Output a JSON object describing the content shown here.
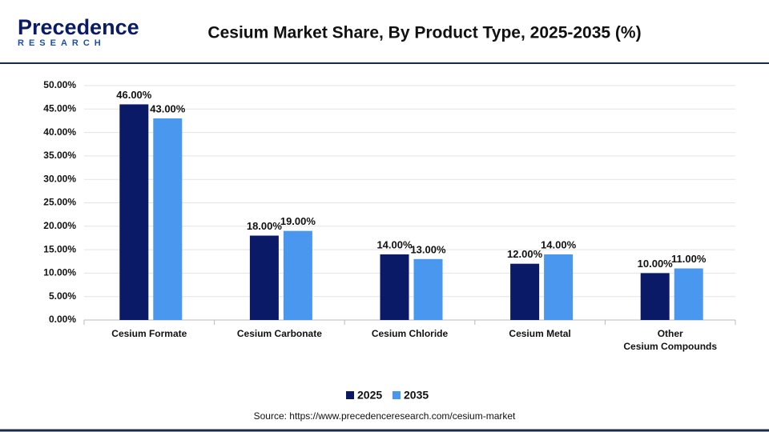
{
  "logo": {
    "name": "Precedence",
    "sub": "RESEARCH"
  },
  "chart_data": {
    "type": "bar",
    "title": "Cesium Market Share, By Product Type, 2025-2035 (%)",
    "source": "Source: https://www.precedenceresearch.com/cesium-market",
    "categories": [
      "Cesium Formate",
      "Cesium Carbonate",
      "Cesium Chloride",
      "Cesium Metal",
      "Other\nCesium Compounds"
    ],
    "series": [
      {
        "name": "2025",
        "color": "#0a1a66",
        "values": [
          46,
          18,
          14,
          12,
          10
        ],
        "value_labels": [
          "46.00%",
          "18.00%",
          "14.00%",
          "12.00%",
          "10.00%"
        ]
      },
      {
        "name": "2035",
        "color": "#4a97ef",
        "values": [
          43,
          19,
          13,
          14,
          11
        ],
        "value_labels": [
          "43.00%",
          "19.00%",
          "13.00%",
          "14.00%",
          "11.00%"
        ]
      }
    ],
    "ylim": [
      0,
      50
    ],
    "yticks": [
      {
        "value": 0,
        "label": "0.00%"
      },
      {
        "value": 5,
        "label": "5.00%"
      },
      {
        "value": 10,
        "label": "10.00%"
      },
      {
        "value": 15,
        "label": "15.00%"
      },
      {
        "value": 20,
        "label": "20.00%"
      },
      {
        "value": 25,
        "label": "25.00%"
      },
      {
        "value": 30,
        "label": "30.00%"
      },
      {
        "value": 35,
        "label": "35.00%"
      },
      {
        "value": 40,
        "label": "40.00%"
      },
      {
        "value": 45,
        "label": "45.00%"
      },
      {
        "value": 50,
        "label": "50.00%"
      }
    ],
    "grid": true,
    "legend": "bottom"
  }
}
